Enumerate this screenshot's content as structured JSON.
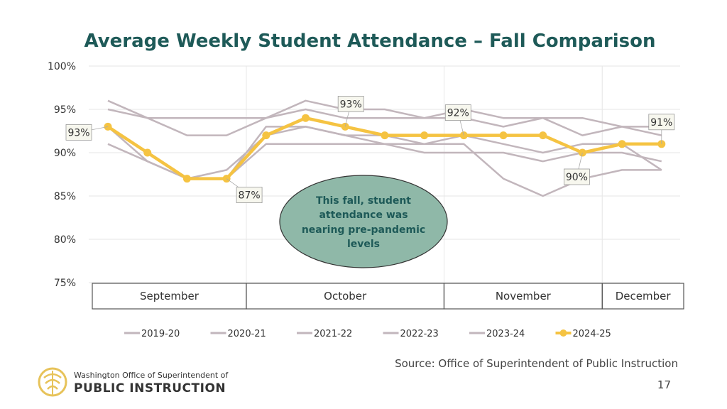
{
  "chart_data": {
    "type": "line",
    "title": "Average Weekly Student Attendance – Fall Comparison",
    "ylim": [
      75,
      100
    ],
    "yticks": [
      "75%",
      "80%",
      "85%",
      "90%",
      "95%",
      "100%"
    ],
    "ytick_values": [
      75,
      80,
      85,
      90,
      95,
      100
    ],
    "months": [
      {
        "label": "September",
        "start": 0,
        "end": 3
      },
      {
        "label": "October",
        "start": 4,
        "end": 8
      },
      {
        "label": "November",
        "start": 9,
        "end": 12
      },
      {
        "label": "December",
        "start": 13,
        "end": 14
      }
    ],
    "week_count": 15,
    "series": [
      {
        "name": "2019-20",
        "values": [
          96,
          94,
          94,
          94,
          94,
          95,
          94,
          94,
          94,
          94,
          93,
          94,
          94,
          93,
          93
        ],
        "color": "#c2b6bc"
      },
      {
        "name": "2020-21",
        "values": [
          95,
          94,
          92,
          92,
          94,
          96,
          95,
          95,
          94,
          95,
          94,
          94,
          92,
          93,
          92
        ],
        "color": "#c2b6bc"
      },
      {
        "name": "2021-22",
        "values": [
          91,
          89,
          87,
          87,
          91,
          91,
          91,
          91,
          91,
          91,
          87,
          85,
          87,
          88,
          88
        ],
        "color": "#c2b6bc"
      },
      {
        "name": "2022-23",
        "values": [
          93,
          90,
          87,
          87,
          93,
          93,
          92,
          91,
          90,
          90,
          90,
          89,
          90,
          90,
          89
        ],
        "color": "#c2b6bc"
      },
      {
        "name": "2023-24",
        "values": [
          93,
          89,
          87,
          88,
          92,
          93,
          92,
          92,
          91,
          92,
          91,
          90,
          91,
          91,
          88
        ],
        "color": "#c2b6bc"
      },
      {
        "name": "2024-25",
        "values": [
          93,
          90,
          87,
          87,
          92,
          94,
          93,
          92,
          92,
          92,
          92,
          92,
          90,
          91,
          91
        ],
        "color": "#f5c342",
        "highlight": true
      }
    ],
    "annotations": [
      {
        "text": "93%",
        "index": 0,
        "value": 93
      },
      {
        "text": "87%",
        "index": 3,
        "value": 87
      },
      {
        "text": "93%",
        "index": 6,
        "value": 93
      },
      {
        "text": "92%",
        "index": 9,
        "value": 92
      },
      {
        "text": "90%",
        "index": 12,
        "value": 90
      },
      {
        "text": "91%",
        "index": 14,
        "value": 91
      }
    ],
    "callout": {
      "lines": [
        "This fall, student",
        "attendance was",
        "nearing pre-pandemic",
        "levels"
      ],
      "fill": "#8fb8a8"
    }
  },
  "footer": {
    "source": "Source: Office of Superintendent of Public Instruction",
    "page_number": "17",
    "logo_line1": "Washington Office of Superintendent of",
    "logo_line2": "PUBLIC INSTRUCTION",
    "logo_color": "#e7c35a"
  }
}
